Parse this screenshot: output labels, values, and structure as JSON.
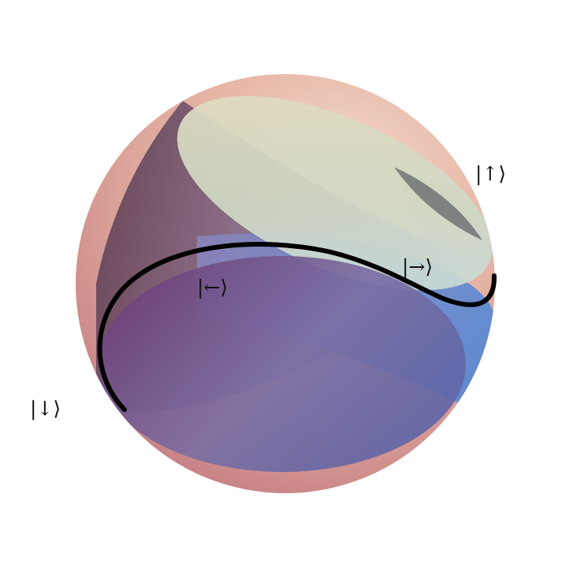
{
  "labels": {
    "up": "|↑⟩",
    "right": "|→⟩",
    "left": "|←⟩",
    "down": "|↓⟩"
  },
  "colors": {
    "sphere_warm": "#e9b9a6",
    "sphere_rose": "#c97f86",
    "upper_cap": "#d6dcc4",
    "lower_cap": "#6a5396",
    "blue_band": "#5f8fd6",
    "curve": "#000000"
  }
}
